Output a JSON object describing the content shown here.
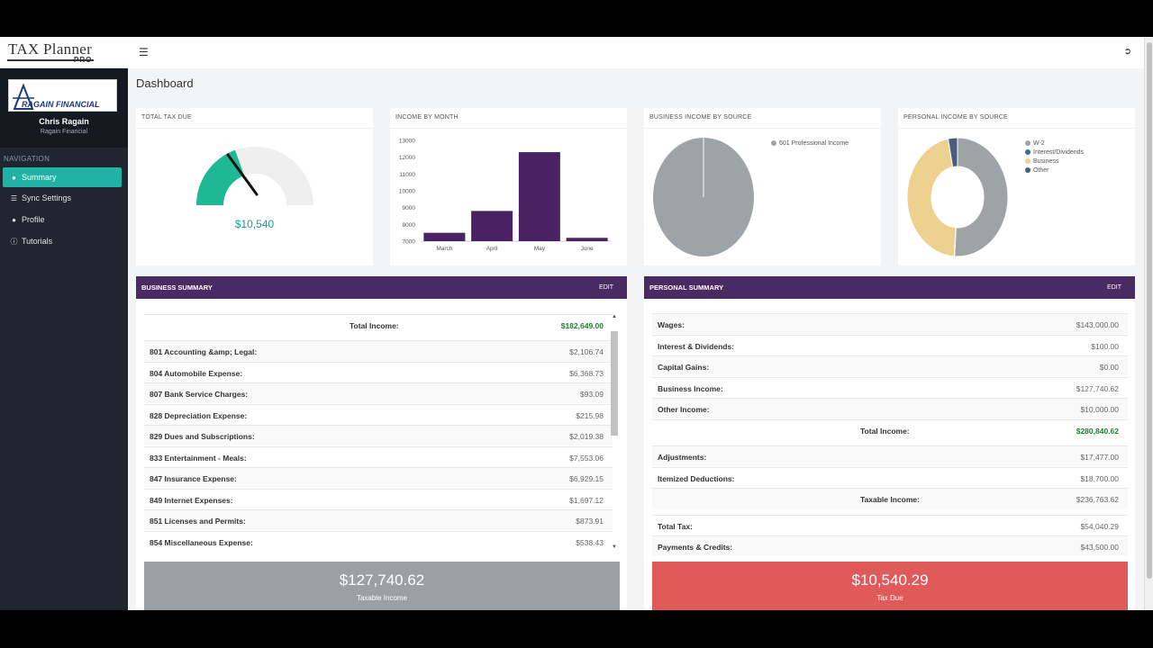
{
  "app": {
    "logo_text_left": "TAX",
    "logo_text_right": "Planner",
    "logo_pro": "PRO"
  },
  "user": {
    "company_logo_text": "RAGAIN FINANCIAL",
    "name": "Chris Ragain",
    "company": "Ragain Financial"
  },
  "nav": {
    "heading": "NAVIGATION",
    "items": [
      {
        "label": "Summary",
        "icon": "dashboard-icon",
        "active": true
      },
      {
        "label": "Sync Settings",
        "icon": "list-icon",
        "active": false
      },
      {
        "label": "Profile",
        "icon": "user-icon",
        "active": false
      },
      {
        "label": "Tutorials",
        "icon": "info-icon",
        "active": false
      }
    ]
  },
  "page": {
    "title": "Dashboard"
  },
  "cards": {
    "total_tax": {
      "title": "TOTAL TAX DUE",
      "value": "$10,540",
      "gauge_fraction": 0.39,
      "color": "#1fb895"
    },
    "income_by_month": {
      "title": "INCOME BY MONTH"
    },
    "business_income": {
      "title": "BUSINESS INCOME BY SOURCE",
      "legend": [
        "601 Professional Income"
      ]
    },
    "personal_income": {
      "title": "PERSONAL INCOME BY SOURCE",
      "legend": [
        "W-2",
        "Interest/Dividends",
        "Business",
        "Other"
      ]
    }
  },
  "chart_data": [
    {
      "type": "bar",
      "categories": [
        "March",
        "April",
        "May",
        "June"
      ],
      "values": [
        7500,
        8800,
        12300,
        7200
      ],
      "ylim": [
        7000,
        13000
      ],
      "yticks": [
        "7000",
        "8000",
        "9000",
        "10000",
        "11000",
        "12000",
        "13000"
      ],
      "color": "#4a2163"
    },
    {
      "type": "pie",
      "labels": [
        "601 Professional Income"
      ],
      "values": [
        100
      ],
      "colors": [
        "#9ea3a6"
      ]
    },
    {
      "type": "pie",
      "donut": true,
      "labels": [
        "W-2",
        "Interest/Dividends",
        "Business",
        "Other"
      ],
      "values": [
        51,
        0.1,
        46,
        3
      ],
      "colors": [
        "#9ea3a6",
        "#2f6f9e",
        "#ecd18f",
        "#4a5d80"
      ]
    }
  ],
  "business": {
    "title": "BUSINESS SUMMARY",
    "edit": "EDIT",
    "total_label": "Total Income:",
    "total_value": "$182,649.00",
    "rows": [
      {
        "label": "801 Accounting &amp; Legal:",
        "value": "$2,106.74"
      },
      {
        "label": "804 Automobile Expense:",
        "value": "$6,368.73"
      },
      {
        "label": "807 Bank Service Charges:",
        "value": "$93.09"
      },
      {
        "label": "828 Depreciation Expense:",
        "value": "$215.98"
      },
      {
        "label": "829 Dues and Subscriptions:",
        "value": "$2,019.38"
      },
      {
        "label": "833 Entertainment - Meals:",
        "value": "$7,553.06"
      },
      {
        "label": "847 Insurance Expense:",
        "value": "$6,929.15"
      },
      {
        "label": "849 Internet Expenses:",
        "value": "$1,697.12"
      },
      {
        "label": "851 Licenses and Permits:",
        "value": "$873.91"
      },
      {
        "label": "854 Miscellaneous Expense:",
        "value": "$538.43"
      }
    ],
    "banner_amount": "$127,740.62",
    "banner_label": "Taxable Income",
    "banner_color": "#9aa0a6"
  },
  "personal": {
    "title": "PERSONAL SUMMARY",
    "edit": "EDIT",
    "rows": [
      {
        "label": "Wages:",
        "value": "$143,000.00"
      },
      {
        "label": "Interest & Dividends:",
        "value": "$100.00"
      },
      {
        "label": "Capital Gains:",
        "value": "$0.00"
      },
      {
        "label": "Business Income:",
        "value": "$127,740.62"
      },
      {
        "label": "Other Income:",
        "value": "$10,000.00"
      }
    ],
    "total_income_label": "Total Income:",
    "total_income_value": "$280,840.62",
    "rows2": [
      {
        "label": "Adjustments:",
        "value": "$17,477.00"
      },
      {
        "label": "Itemized Deductions:",
        "value": "$18,700.00"
      }
    ],
    "taxable_label": "Taxable Income:",
    "taxable_value": "$236,763.62",
    "rows3": [
      {
        "label": "Total Tax:",
        "value": "$54,040.29"
      },
      {
        "label": "Payments & Credits:",
        "value": "$43,500.00"
      }
    ],
    "banner_amount": "$10,540.29",
    "banner_label": "Tax Due",
    "banner_color": "#e05a5a"
  }
}
